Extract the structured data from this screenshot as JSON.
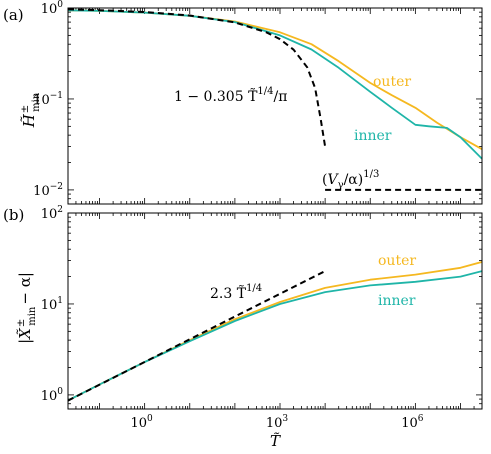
{
  "colors": {
    "outer": "#f5b820",
    "inner": "#1fb5a8",
    "fit": "#000000"
  },
  "chart_data": [
    {
      "type": "line",
      "panel_label": "(a)",
      "ylabel": "H̃",
      "ylabel_sup": "±",
      "ylabel_sub": "min",
      "xscale": "log",
      "yscale": "log",
      "xlim": [
        0.02,
        30000000.0
      ],
      "ylim": [
        0.007,
        1
      ],
      "yticks": [
        {
          "value": 1,
          "label": "10",
          "exp": "0"
        },
        {
          "value": 0.1,
          "label": "10",
          "exp": "−1"
        },
        {
          "value": 0.01,
          "label": "10",
          "exp": "−2"
        }
      ],
      "series": [
        {
          "name": "outer",
          "color_key": "outer",
          "style": "solid",
          "x": [
            0.02,
            0.1,
            1,
            10,
            100,
            1000,
            5000,
            20000,
            100000,
            300000,
            1000000,
            3000000,
            10000000,
            30000000
          ],
          "y": [
            0.94,
            0.93,
            0.89,
            0.82,
            0.71,
            0.54,
            0.4,
            0.26,
            0.15,
            0.11,
            0.08,
            0.055,
            0.038,
            0.028
          ]
        },
        {
          "name": "inner",
          "color_key": "inner",
          "style": "solid",
          "x": [
            0.02,
            0.1,
            1,
            10,
            100,
            1000,
            5000,
            20000,
            100000,
            300000,
            1000000,
            2000000,
            5000000,
            10000000,
            30000000
          ],
          "y": [
            0.94,
            0.93,
            0.89,
            0.82,
            0.7,
            0.5,
            0.35,
            0.22,
            0.12,
            0.08,
            0.052,
            0.05,
            0.048,
            0.038,
            0.022
          ]
        },
        {
          "name": "1 − 0.305 T̃^(1/4)/π",
          "color_key": "fit",
          "style": "dashed",
          "x": [
            0.02,
            0.1,
            1,
            10,
            100,
            500,
            1000,
            2000,
            4000,
            6000,
            8000,
            10000
          ],
          "y": [
            0.967,
            0.946,
            0.903,
            0.828,
            0.694,
            0.541,
            0.454,
            0.348,
            0.223,
            0.132,
            0.06,
            0.03
          ]
        },
        {
          "name": "(V_γ/α)^(1/3)",
          "color_key": "fit",
          "style": "dashed",
          "x": [
            10000,
            30000000
          ],
          "y": [
            0.01,
            0.01
          ]
        }
      ],
      "annotations": {
        "fit_main": "1 − 0.305 T̃",
        "fit_exp": "1/4",
        "fit_tail": "/π",
        "asym_open": "(",
        "asym_V": "V",
        "asym_sub": "γ",
        "asym_mid": "/α)",
        "asym_exp": "1/3",
        "outer": "outer",
        "inner": "inner"
      }
    },
    {
      "type": "line",
      "panel_label": "(b)",
      "ylabel_pre": "|X̃",
      "ylabel_sup": "±",
      "ylabel_sub": "min",
      "ylabel_post": "− α|",
      "xlabel": "T̃",
      "xscale": "log",
      "yscale": "log",
      "xlim": [
        0.02,
        30000000.0
      ],
      "ylim": [
        0.7,
        100
      ],
      "yticks": [
        {
          "value": 100,
          "label": "10",
          "exp": "2"
        },
        {
          "value": 10,
          "label": "10",
          "exp": "1"
        },
        {
          "value": 1,
          "label": "10",
          "exp": "0"
        }
      ],
      "xticks": [
        {
          "value": 1,
          "label": "10",
          "exp": "0"
        },
        {
          "value": 1000,
          "label": "10",
          "exp": "3"
        },
        {
          "value": 1000000,
          "label": "10",
          "exp": "6"
        }
      ],
      "series": [
        {
          "name": "outer",
          "color_key": "outer",
          "style": "solid",
          "x": [
            0.02,
            0.1,
            1,
            10,
            100,
            1000,
            10000,
            100000,
            1000000,
            10000000,
            30000000
          ],
          "y": [
            0.87,
            1.3,
            2.3,
            4.0,
            6.8,
            10.5,
            15,
            18.5,
            21,
            25,
            29
          ]
        },
        {
          "name": "inner",
          "color_key": "inner",
          "style": "solid",
          "x": [
            0.02,
            0.1,
            1,
            10,
            100,
            1000,
            10000,
            100000,
            1000000,
            10000000,
            30000000
          ],
          "y": [
            0.87,
            1.3,
            2.3,
            3.9,
            6.5,
            10,
            13.5,
            16,
            17.5,
            20,
            23
          ]
        },
        {
          "name": "2.3 T̃^(1/4)",
          "color_key": "fit",
          "style": "dashed",
          "x": [
            0.02,
            10000
          ],
          "y": [
            0.865,
            23
          ]
        }
      ],
      "annotations": {
        "fit_main": "2.3 T̃",
        "fit_exp": "1/4",
        "outer": "outer",
        "inner": "inner"
      }
    }
  ]
}
